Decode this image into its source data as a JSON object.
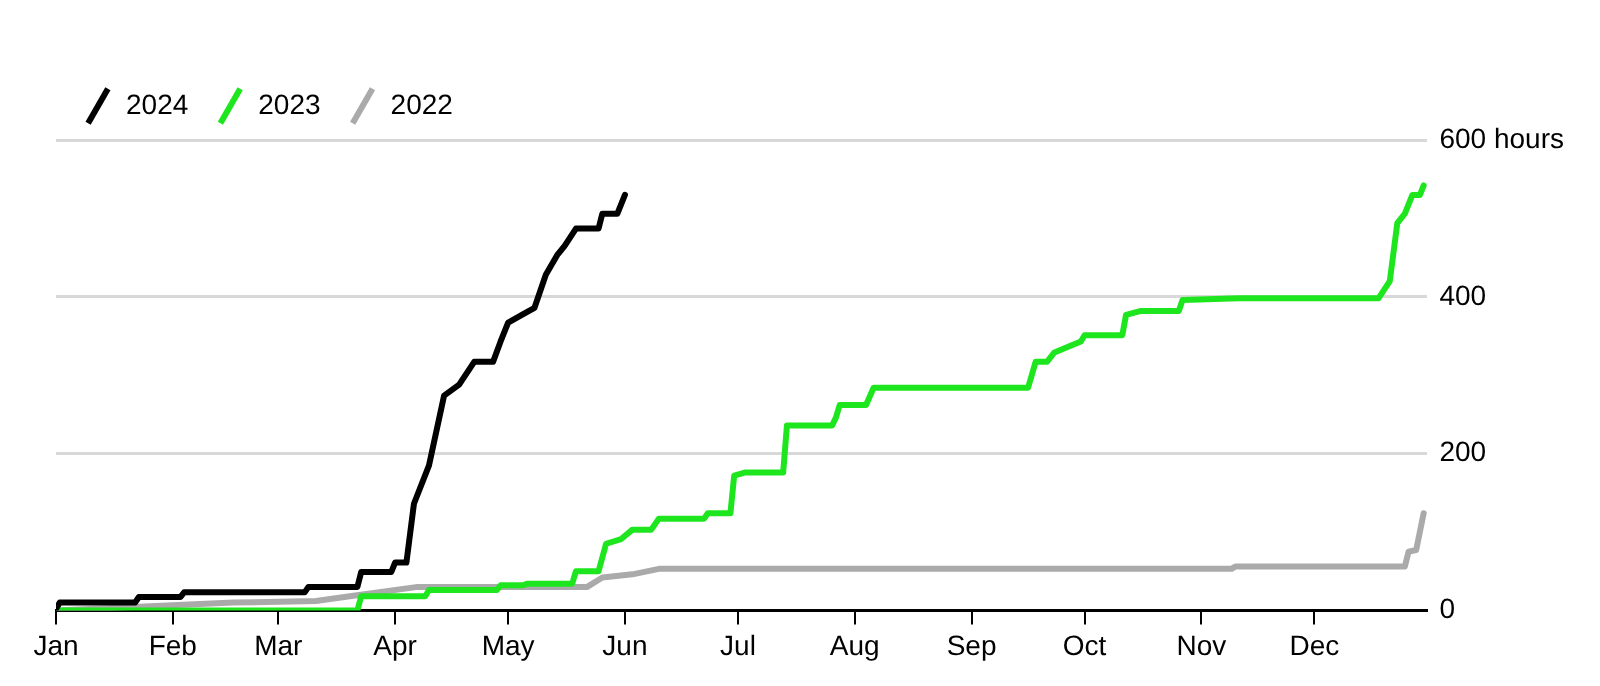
{
  "chart_data": {
    "type": "line",
    "xlim": [
      "--01-01",
      "--12-31"
    ],
    "xticks": [
      {
        "value": "--01-01",
        "label": "Jan"
      },
      {
        "value": "--02-01",
        "label": "Feb"
      },
      {
        "value": "--03-01",
        "label": "Mar"
      },
      {
        "value": "--04-01",
        "label": "Apr"
      },
      {
        "value": "--05-01",
        "label": "May"
      },
      {
        "value": "--06-01",
        "label": "Jun"
      },
      {
        "value": "--07-01",
        "label": "Jul"
      },
      {
        "value": "--08-01",
        "label": "Aug"
      },
      {
        "value": "--09-01",
        "label": "Sep"
      },
      {
        "value": "--10-01",
        "label": "Oct"
      },
      {
        "value": "--11-01",
        "label": "Nov"
      },
      {
        "value": "--12-01",
        "label": "Dec"
      }
    ],
    "ylim": [
      0,
      600
    ],
    "yticks": [
      0,
      200,
      400,
      {
        "value": 600,
        "label": "600 hours"
      }
    ],
    "grid": "y",
    "legend": "top left",
    "marker": "none",
    "line_style": "solid",
    "series": [
      {
        "name": "2024",
        "color": "#000000",
        "x": [
          "--01-01",
          "--01-02",
          "--01-22",
          "--01-23",
          "--02-03",
          "--02-04",
          "--03-08",
          "--03-09",
          "--03-22",
          "--03-23",
          "--03-31",
          "--04-01",
          "--04-04",
          "--04-06",
          "--04-10",
          "--04-14",
          "--04-18",
          "--04-22",
          "--04-27",
          "--04-29",
          "--05-01",
          "--05-05",
          "--05-08",
          "--05-11",
          "--05-14",
          "--05-16",
          "--05-19",
          "--05-25",
          "--05-26",
          "--05-30",
          "--06-01"
        ],
        "values": [
          2,
          10,
          10,
          17,
          17,
          23,
          23,
          30,
          30,
          49,
          49,
          61,
          61,
          136,
          185,
          274,
          288,
          317,
          317,
          343,
          367,
          378,
          386,
          428,
          453,
          465,
          487,
          487,
          506,
          506,
          530
        ]
      },
      {
        "name": "2023",
        "color": "#1ee61e",
        "x": [
          "--01-01",
          "--03-22",
          "--03-23",
          "--04-09",
          "--04-10",
          "--04-28",
          "--04-29",
          "--05-05",
          "--05-06",
          "--05-18",
          "--05-19",
          "--05-25",
          "--05-27",
          "--05-31",
          "--06-03",
          "--06-08",
          "--06-10",
          "--06-22",
          "--06-23",
          "--06-29",
          "--06-30",
          "--07-03",
          "--07-13",
          "--07-14",
          "--07-26",
          "--07-27",
          "--07-28",
          "--08-04",
          "--08-06",
          "--09-16",
          "--09-18",
          "--09-21",
          "--09-23",
          "--09-26",
          "--09-30",
          "--10-01",
          "--10-11",
          "--10-12",
          "--10-16",
          "--10-26",
          "--10-27",
          "--11-11",
          "--12-18",
          "--12-21",
          "--12-23",
          "--12-25",
          "--12-27",
          "--12-29",
          "--12-30"
        ],
        "values": [
          0,
          0,
          18,
          18,
          26,
          26,
          32,
          32,
          34,
          34,
          50,
          50,
          85,
          91,
          103,
          103,
          117,
          117,
          124,
          124,
          172,
          176,
          176,
          236,
          236,
          246,
          262,
          262,
          284,
          284,
          317,
          317,
          329,
          335,
          343,
          351,
          351,
          377,
          382,
          382,
          396,
          398,
          398,
          420,
          494,
          506,
          530,
          530,
          542
        ]
      },
      {
        "name": "2022",
        "color": "#aaaaaa",
        "x": [
          "--01-01",
          "--02-17",
          "--03-11",
          "--03-20",
          "--04-07",
          "--05-22",
          "--05-26",
          "--06-03",
          "--06-10",
          "--11-09",
          "--11-10",
          "--12-25",
          "--12-26",
          "--12-28",
          "--12-30"
        ],
        "values": [
          0,
          10,
          12,
          18,
          30,
          30,
          42,
          46,
          53,
          53,
          56,
          56,
          75,
          77,
          124
        ]
      }
    ]
  }
}
